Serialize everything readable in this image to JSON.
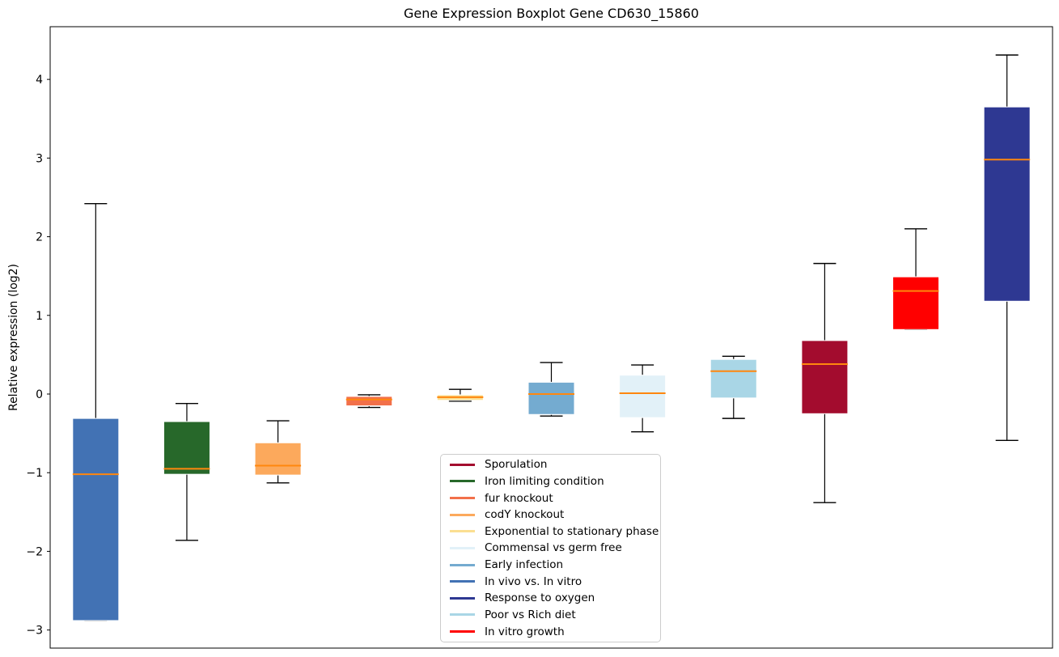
{
  "title": "Gene Expression Boxplot Gene CD630_15860",
  "chart_data": {
    "type": "boxplot",
    "title": "Gene Expression Boxplot Gene CD630_15860",
    "xlabel": "",
    "ylabel": "Relative expression (log2)",
    "ylim": [
      -3.23,
      4.67
    ],
    "yticks": [
      4,
      3,
      2,
      1,
      0,
      -1,
      -2,
      -3
    ],
    "grid": false,
    "legend_position": "lower-center",
    "median_color": "#ff870e",
    "whisker_color": "#000000",
    "boxes": [
      {
        "label": "In vivo vs. In vitro",
        "color": "#4272b4",
        "whisker_low": -2.88,
        "q1": -2.88,
        "median": -1.02,
        "q3": -0.31,
        "whisker_high": 2.42
      },
      {
        "label": "Iron limiting condition",
        "color": "#27682a",
        "whisker_low": -1.86,
        "q1": -1.02,
        "median": -0.95,
        "q3": -0.35,
        "whisker_high": -0.12
      },
      {
        "label": "codY knockout",
        "color": "#fca95c",
        "whisker_low": -1.13,
        "q1": -1.03,
        "median": -0.91,
        "q3": -0.62,
        "whisker_high": -0.34
      },
      {
        "label": "fur knockout",
        "color": "#f2704a",
        "whisker_low": -0.17,
        "q1": -0.15,
        "median": -0.07,
        "q3": -0.03,
        "whisker_high": -0.01
      },
      {
        "label": "Exponential to stationary phase",
        "color": "#fbdf92",
        "whisker_low": -0.09,
        "q1": -0.08,
        "median": -0.04,
        "q3": -0.01,
        "whisker_high": 0.06
      },
      {
        "label": "Early infection",
        "color": "#74abd0",
        "whisker_low": -0.28,
        "q1": -0.26,
        "median": 0.0,
        "q3": 0.15,
        "whisker_high": 0.4
      },
      {
        "label": "Commensal vs germ free",
        "color": "#e2f1f8",
        "whisker_low": -0.48,
        "q1": -0.3,
        "median": 0.01,
        "q3": 0.24,
        "whisker_high": 0.37
      },
      {
        "label": "Poor vs Rich diet",
        "color": "#a9d6e6",
        "whisker_low": -0.31,
        "q1": -0.05,
        "median": 0.29,
        "q3": 0.44,
        "whisker_high": 0.48
      },
      {
        "label": "Sporulation",
        "color": "#a30c2e",
        "whisker_low": -1.38,
        "q1": -0.25,
        "median": 0.38,
        "q3": 0.68,
        "whisker_high": 1.66
      },
      {
        "label": "In vitro growth",
        "color": "#ff0000",
        "whisker_low": 0.82,
        "q1": 0.82,
        "median": 1.31,
        "q3": 1.49,
        "whisker_high": 2.1
      },
      {
        "label": "Response to oxygen",
        "color": "#2e3892",
        "whisker_low": -0.59,
        "q1": 1.18,
        "median": 2.98,
        "q3": 3.65,
        "whisker_high": 4.31
      }
    ],
    "legend": [
      {
        "label": "Sporulation",
        "color": "#a30c2e"
      },
      {
        "label": "Iron limiting condition",
        "color": "#27682a"
      },
      {
        "label": "fur knockout",
        "color": "#f2704a"
      },
      {
        "label": "codY knockout",
        "color": "#fca95c"
      },
      {
        "label": "Exponential to stationary phase",
        "color": "#fbdf92"
      },
      {
        "label": "Commensal vs germ free",
        "color": "#e2f1f8"
      },
      {
        "label": "Early infection",
        "color": "#74abd0"
      },
      {
        "label": "In vivo vs. In vitro",
        "color": "#4272b4"
      },
      {
        "label": "Response to oxygen",
        "color": "#2e3892"
      },
      {
        "label": "Poor vs Rich diet",
        "color": "#a9d6e6"
      },
      {
        "label": "In vitro growth",
        "color": "#ff0000"
      }
    ]
  }
}
